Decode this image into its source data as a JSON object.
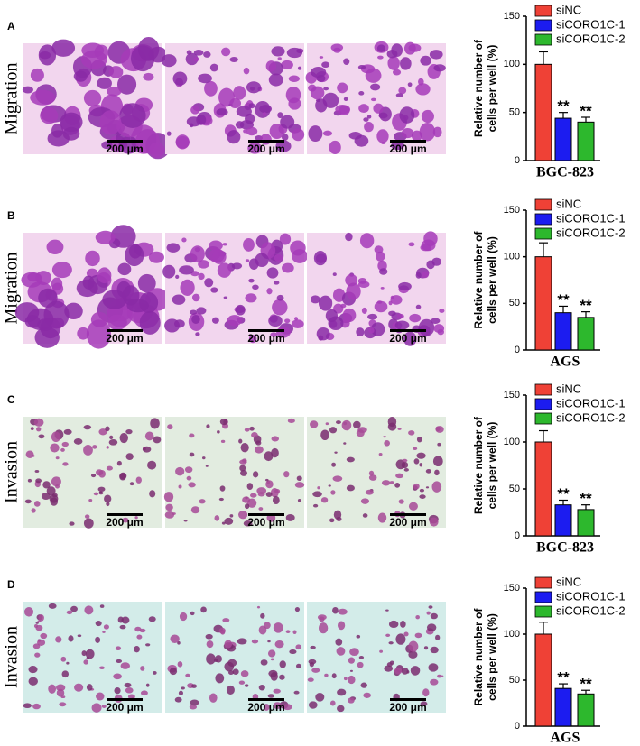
{
  "chart_data": [
    {
      "type": "bar",
      "panel_label": "A",
      "row_label": "Migration",
      "scale_bar_labels": [
        "200 μm",
        "200 μm",
        "200 μm"
      ],
      "ylabel": [
        "Relative number of",
        "cells per well (%)"
      ],
      "xlabel": "BGC-823",
      "ylim": [
        0,
        150
      ],
      "yticks": [
        0,
        50,
        100,
        150
      ],
      "series": [
        {
          "name": "siNC",
          "color": "#ef4136",
          "values": [
            100
          ],
          "errors": [
            13
          ]
        },
        {
          "name": "siCORO1C-1",
          "color": "#1c1cf0",
          "values": [
            44
          ],
          "errors": [
            6
          ],
          "annotation": "**"
        },
        {
          "name": "siCORO1C-2",
          "color": "#2db82d",
          "values": [
            40
          ],
          "errors": [
            5
          ],
          "annotation": "**"
        }
      ]
    },
    {
      "type": "bar",
      "panel_label": "B",
      "row_label": "Migration",
      "scale_bar_labels": [
        "200 μm",
        "200 μm",
        "200 μm"
      ],
      "ylabel": [
        "Relative number of",
        "cells per well (%)"
      ],
      "xlabel": "AGS",
      "ylim": [
        0,
        150
      ],
      "yticks": [
        0,
        50,
        100,
        150
      ],
      "series": [
        {
          "name": "siNC",
          "color": "#ef4136",
          "values": [
            100
          ],
          "errors": [
            15
          ]
        },
        {
          "name": "siCORO1C-1",
          "color": "#1c1cf0",
          "values": [
            40
          ],
          "errors": [
            7
          ],
          "annotation": "**"
        },
        {
          "name": "siCORO1C-2",
          "color": "#2db82d",
          "values": [
            35
          ],
          "errors": [
            6
          ],
          "annotation": "**"
        }
      ]
    },
    {
      "type": "bar",
      "panel_label": "C",
      "row_label": "Invasion",
      "scale_bar_labels": [
        "200 μm",
        "200 μm",
        "200 μm"
      ],
      "ylabel": [
        "Relative number of",
        "cells per well (%)"
      ],
      "xlabel": "BGC-823",
      "ylim": [
        0,
        150
      ],
      "yticks": [
        0,
        50,
        100,
        150
      ],
      "series": [
        {
          "name": "siNC",
          "color": "#ef4136",
          "values": [
            100
          ],
          "errors": [
            12
          ]
        },
        {
          "name": "siCORO1C-1",
          "color": "#1c1cf0",
          "values": [
            33
          ],
          "errors": [
            5
          ],
          "annotation": "**"
        },
        {
          "name": "siCORO1C-2",
          "color": "#2db82d",
          "values": [
            28
          ],
          "errors": [
            5
          ],
          "annotation": "**"
        }
      ]
    },
    {
      "type": "bar",
      "panel_label": "D",
      "row_label": "Invasion",
      "scale_bar_labels": [
        "200 μm",
        "200 μm",
        "200 μm"
      ],
      "ylabel": [
        "Relative number of",
        "cells per well (%)"
      ],
      "xlabel": "AGS",
      "ylim": [
        0,
        150
      ],
      "yticks": [
        0,
        50,
        100,
        150
      ],
      "series": [
        {
          "name": "siNC",
          "color": "#ef4136",
          "values": [
            100
          ],
          "errors": [
            13
          ]
        },
        {
          "name": "siCORO1C-1",
          "color": "#1c1cf0",
          "values": [
            41
          ],
          "errors": [
            5
          ],
          "annotation": "**"
        },
        {
          "name": "siCORO1C-2",
          "color": "#2db82d",
          "values": [
            35
          ],
          "errors": [
            4
          ],
          "annotation": "**"
        }
      ]
    }
  ]
}
